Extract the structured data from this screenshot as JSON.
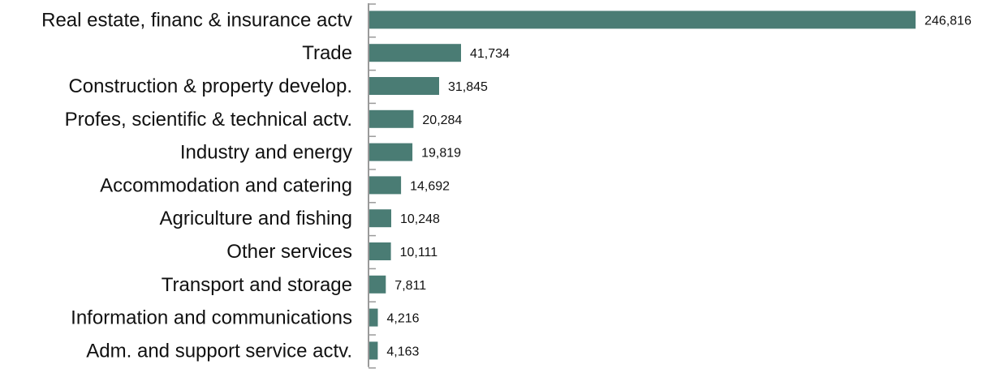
{
  "chart_data": {
    "type": "bar",
    "orientation": "horizontal",
    "categories": [
      "Real estate, financ & insurance actv",
      "Trade",
      "Construction & property develop.",
      "Profes, scientific & technical actv.",
      "Industry and energy",
      "Accommodation and catering",
      "Agriculture and fishing",
      "Other services",
      "Transport and storage",
      "Information and communications",
      "Adm. and support service actv."
    ],
    "values": [
      246816,
      41734,
      31845,
      20284,
      19819,
      14692,
      10248,
      10111,
      7811,
      4216,
      4163
    ],
    "value_labels": [
      "246,816",
      "41,734",
      "31,845",
      "20,284",
      "19,819",
      "14,692",
      "10,248",
      "10,111",
      "7,811",
      "4,216",
      "4,163"
    ],
    "title": "",
    "xlabel": "",
    "ylabel": "",
    "xlim": [
      0,
      246816
    ],
    "grid": false,
    "legend": "none",
    "bar_color": "#4a7c74",
    "axis_color": "#9a9a9a"
  }
}
